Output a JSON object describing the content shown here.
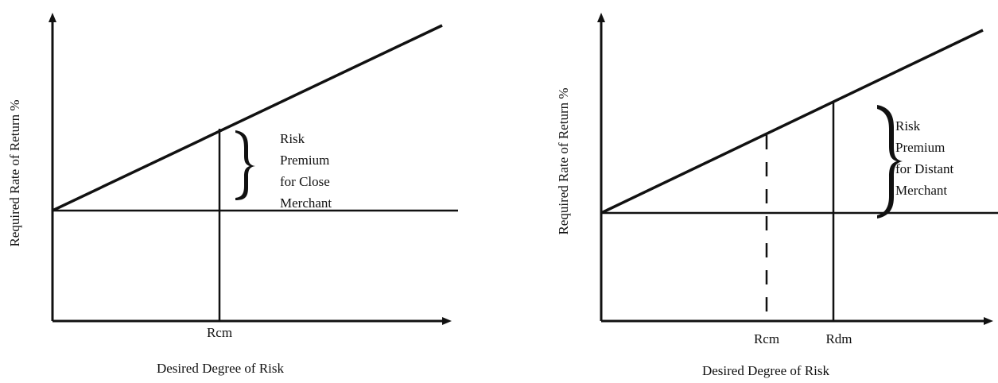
{
  "panels": [
    {
      "y_axis_label": "Required Rate of Return %",
      "x_axis_label": "Desired Degree of Risk",
      "markers": [
        {
          "label": "Rcm",
          "style": "solid"
        }
      ],
      "annotation": [
        "Risk",
        "Premium",
        "for Close",
        "Merchant"
      ]
    },
    {
      "y_axis_label": "Required Rate of Return %",
      "x_axis_label": "Desired Degree of Risk",
      "markers": [
        {
          "label": "Rcm",
          "style": "dashed"
        },
        {
          "label": "Rdm",
          "style": "solid"
        }
      ],
      "annotation": [
        "Risk",
        "Premium",
        "for Distant",
        "Merchant"
      ]
    }
  ],
  "colors": {
    "ink": "#111111",
    "background": "#ffffff"
  }
}
